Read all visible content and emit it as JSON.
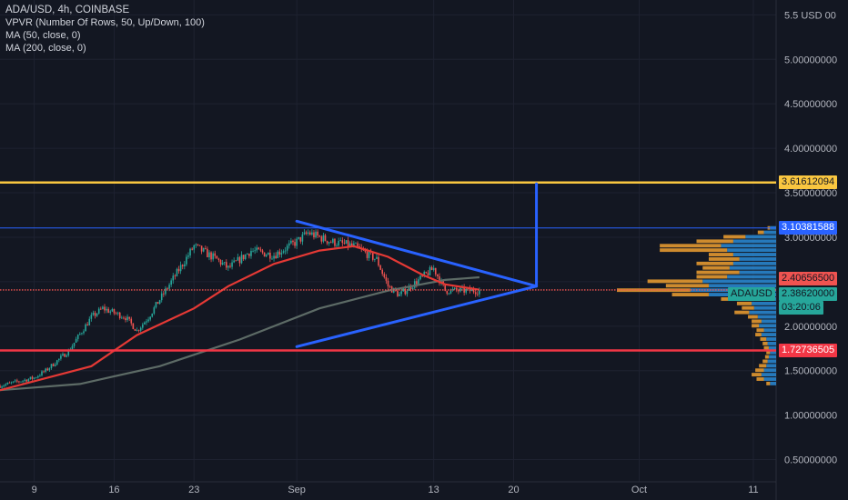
{
  "header": {
    "title": "ADA/USD, 4h, COINBASE",
    "indicators": [
      "VPVR (Number Of Rows, 50, Up/Down, 100)",
      "MA (50, close, 0)",
      "MA (200, close, 0)"
    ]
  },
  "colors": {
    "background": "#131722",
    "grid": "#1e2230",
    "axis_text": "#b2b5be",
    "candle_up": "#26a69a",
    "candle_down": "#ef5350",
    "ma50": "#e53935",
    "ma200": "#5d6b66",
    "wedge": "#2962ff",
    "resistance_top": "#f9c640",
    "resistance_blue": "#2962ff",
    "current_price": "#ef5350",
    "support_red": "#f23645",
    "vp_up": "#2a8bd6",
    "vp_down": "#f0a030"
  },
  "chart_data": {
    "type": "candlestick",
    "symbol": "ADA/USD",
    "timeframe": "4h",
    "exchange": "COINBASE",
    "y_ticks": [
      "5.5 USD 00",
      "5.00000000",
      "4.50000000",
      "4.00000000",
      "3.50000000",
      "3.00000000",
      "2.50000000",
      "2.00000000",
      "1.50000000",
      "1.00000000",
      "0.50000000"
    ],
    "x_ticks": [
      "9",
      "16",
      "23",
      "Sep",
      "13",
      "20",
      "Oct",
      "11"
    ],
    "ylim": [
      0.25,
      5.55
    ],
    "date_start": "2021-08-06",
    "date_end": "2021-10-13",
    "horizontal_lines": [
      {
        "label": "3.61612094",
        "price": 3.616,
        "style": "solid"
      },
      {
        "label": "3.10381588",
        "price": 3.104,
        "style": "solid"
      },
      {
        "label": "2.40656500",
        "price": 2.407,
        "style": "dotted"
      },
      {
        "label": "1.72736505",
        "price": 1.727,
        "style": "solid"
      }
    ],
    "current_price": {
      "symbol": "ADAUSD",
      "price": "2.38620000",
      "countdown": "03:20:06"
    },
    "closes": [
      {
        "date": "2021-08-06",
        "price": 1.33
      },
      {
        "date": "2021-08-09",
        "price": 1.42
      },
      {
        "date": "2021-08-10",
        "price": 1.5
      },
      {
        "date": "2021-08-12",
        "price": 1.72
      },
      {
        "date": "2021-08-14",
        "price": 2.1
      },
      {
        "date": "2021-08-15",
        "price": 2.2
      },
      {
        "date": "2021-08-17",
        "price": 2.1
      },
      {
        "date": "2021-08-18",
        "price": 1.95
      },
      {
        "date": "2021-08-19",
        "price": 2.1
      },
      {
        "date": "2021-08-21",
        "price": 2.5
      },
      {
        "date": "2021-08-22",
        "price": 2.7
      },
      {
        "date": "2021-08-23",
        "price": 2.9
      },
      {
        "date": "2021-08-25",
        "price": 2.75
      },
      {
        "date": "2021-08-26",
        "price": 2.65
      },
      {
        "date": "2021-08-28",
        "price": 2.85
      },
      {
        "date": "2021-08-30",
        "price": 2.8
      },
      {
        "date": "2021-09-01",
        "price": 2.95
      },
      {
        "date": "2021-09-02",
        "price": 3.05
      },
      {
        "date": "2021-09-04",
        "price": 2.95
      },
      {
        "date": "2021-09-06",
        "price": 2.9
      },
      {
        "date": "2021-09-08",
        "price": 2.75
      },
      {
        "date": "2021-09-09",
        "price": 2.45
      },
      {
        "date": "2021-09-10",
        "price": 2.35
      },
      {
        "date": "2021-09-11",
        "price": 2.45
      },
      {
        "date": "2021-09-12",
        "price": 2.55
      },
      {
        "date": "2021-09-13",
        "price": 2.65
      },
      {
        "date": "2021-09-14",
        "price": 2.4
      },
      {
        "date": "2021-09-16",
        "price": 2.4
      },
      {
        "date": "2021-09-17",
        "price": 2.4
      }
    ],
    "ma50": [
      {
        "date": "2021-08-06",
        "price": 1.28
      },
      {
        "date": "2021-08-14",
        "price": 1.55
      },
      {
        "date": "2021-08-18",
        "price": 1.9
      },
      {
        "date": "2021-08-23",
        "price": 2.2
      },
      {
        "date": "2021-08-26",
        "price": 2.45
      },
      {
        "date": "2021-08-30",
        "price": 2.7
      },
      {
        "date": "2021-09-03",
        "price": 2.85
      },
      {
        "date": "2021-09-06",
        "price": 2.9
      },
      {
        "date": "2021-09-09",
        "price": 2.78
      },
      {
        "date": "2021-09-12",
        "price": 2.58
      },
      {
        "date": "2021-09-14",
        "price": 2.47
      },
      {
        "date": "2021-09-17",
        "price": 2.41
      }
    ],
    "ma200": [
      {
        "date": "2021-08-06",
        "price": 1.28
      },
      {
        "date": "2021-08-13",
        "price": 1.35
      },
      {
        "date": "2021-08-20",
        "price": 1.55
      },
      {
        "date": "2021-08-27",
        "price": 1.85
      },
      {
        "date": "2021-09-03",
        "price": 2.2
      },
      {
        "date": "2021-09-09",
        "price": 2.4
      },
      {
        "date": "2021-09-14",
        "price": 2.52
      },
      {
        "date": "2021-09-17",
        "price": 2.55
      }
    ],
    "triangle": [
      {
        "date": "2021-09-01",
        "price": 3.18
      },
      {
        "date": "2021-09-22",
        "price": 2.45
      },
      {
        "date": "2021-09-01",
        "price": 1.77
      },
      {
        "date": "2021-09-22",
        "price": 2.45
      }
    ],
    "projection": [
      {
        "date": "2021-09-22",
        "price": 2.45
      },
      {
        "date": "2021-09-22",
        "price": 3.6
      }
    ],
    "volume_profile": [
      {
        "price": 3.1,
        "up": 0.05,
        "down": 0.02
      },
      {
        "price": 3.05,
        "up": 0.1,
        "down": 0.05
      },
      {
        "price": 3.0,
        "up": 0.25,
        "down": 0.18
      },
      {
        "price": 2.95,
        "up": 0.35,
        "down": 0.3
      },
      {
        "price": 2.9,
        "up": 0.45,
        "down": 0.5
      },
      {
        "price": 2.85,
        "up": 0.4,
        "down": 0.55
      },
      {
        "price": 2.8,
        "up": 0.35,
        "down": 0.2
      },
      {
        "price": 2.75,
        "up": 0.3,
        "down": 0.25
      },
      {
        "price": 2.7,
        "up": 0.35,
        "down": 0.3
      },
      {
        "price": 2.65,
        "up": 0.38,
        "down": 0.22
      },
      {
        "price": 2.6,
        "up": 0.3,
        "down": 0.35
      },
      {
        "price": 2.55,
        "up": 0.4,
        "down": 0.25
      },
      {
        "price": 2.5,
        "up": 0.6,
        "down": 0.45
      },
      {
        "price": 2.45,
        "up": 0.55,
        "down": 0.35
      },
      {
        "price": 2.4,
        "up": 0.7,
        "down": 0.6
      },
      {
        "price": 2.35,
        "up": 0.55,
        "down": 0.3
      },
      {
        "price": 2.3,
        "up": 0.3,
        "down": 0.15
      },
      {
        "price": 2.25,
        "up": 0.2,
        "down": 0.12
      },
      {
        "price": 2.2,
        "up": 0.18,
        "down": 0.1
      },
      {
        "price": 2.15,
        "up": 0.22,
        "down": 0.12
      },
      {
        "price": 2.1,
        "up": 0.15,
        "down": 0.08
      },
      {
        "price": 2.05,
        "up": 0.12,
        "down": 0.08
      },
      {
        "price": 2.0,
        "up": 0.14,
        "down": 0.06
      },
      {
        "price": 1.95,
        "up": 0.1,
        "down": 0.06
      },
      {
        "price": 1.9,
        "up": 0.12,
        "down": 0.05
      },
      {
        "price": 1.85,
        "up": 0.08,
        "down": 0.05
      },
      {
        "price": 1.8,
        "up": 0.07,
        "down": 0.04
      },
      {
        "price": 1.75,
        "up": 0.06,
        "down": 0.04
      },
      {
        "price": 1.7,
        "up": 0.05,
        "down": 0.03
      },
      {
        "price": 1.65,
        "up": 0.06,
        "down": 0.03
      },
      {
        "price": 1.6,
        "up": 0.07,
        "down": 0.04
      },
      {
        "price": 1.55,
        "up": 0.08,
        "down": 0.06
      },
      {
        "price": 1.5,
        "up": 0.1,
        "down": 0.07
      },
      {
        "price": 1.45,
        "up": 0.12,
        "down": 0.08
      },
      {
        "price": 1.4,
        "up": 0.1,
        "down": 0.06
      },
      {
        "price": 1.35,
        "up": 0.05,
        "down": 0.03
      }
    ]
  }
}
